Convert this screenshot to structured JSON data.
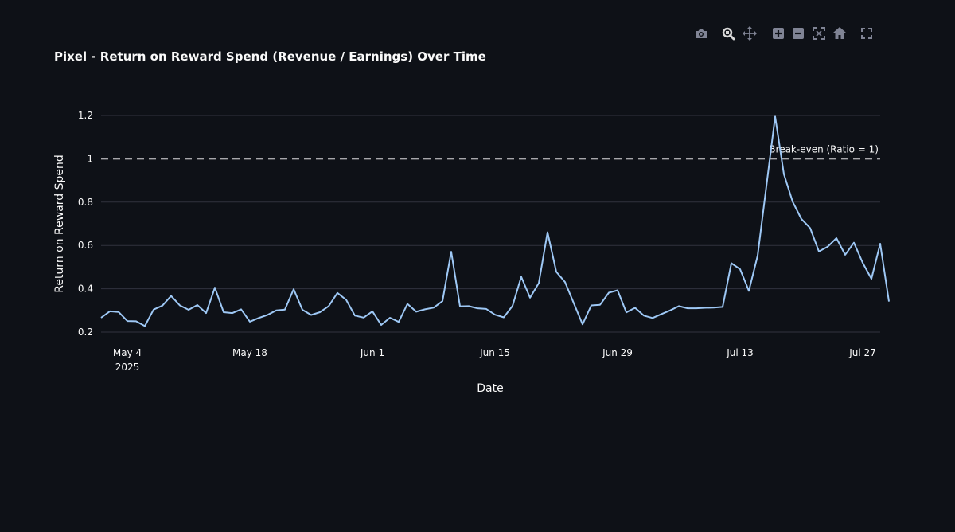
{
  "toolbar": {
    "items": [
      {
        "name": "camera-icon",
        "tooltip": "Download plot as a png"
      },
      {
        "name": "zoom-icon",
        "tooltip": "Zoom"
      },
      {
        "name": "pan-icon",
        "tooltip": "Pan"
      },
      {
        "name": "zoom-in-icon",
        "tooltip": "Zoom in"
      },
      {
        "name": "zoom-out-icon",
        "tooltip": "Zoom out"
      },
      {
        "name": "autoscale-icon",
        "tooltip": "Autoscale"
      },
      {
        "name": "reset-axes-icon",
        "tooltip": "Reset axes"
      },
      {
        "name": "fullscreen-icon",
        "tooltip": "View fullscreen"
      }
    ],
    "active_item": "zoom-icon"
  },
  "colors": {
    "background": "#0e1117",
    "text": "#fafafa",
    "grid": "#31333f",
    "line": "#9ec8f5",
    "threshold": "#a7a7ab",
    "icon": "#808495",
    "icon_active": "#d9d9d9"
  },
  "chart_data": {
    "type": "line",
    "title": "Pixel - Return on Reward Spend (Revenue / Earnings) Over Time",
    "xlabel": "Date",
    "ylabel": "Return on Reward Spend",
    "x_start": "2025-05-01",
    "xlim": [
      "2025-05-01",
      "2025-07-29"
    ],
    "ylim": [
      0.2,
      1.2
    ],
    "yticks": [
      {
        "value": 0.2,
        "label": "0.2"
      },
      {
        "value": 0.4,
        "label": "0.4"
      },
      {
        "value": 0.6,
        "label": "0.6"
      },
      {
        "value": 0.8,
        "label": "0.8"
      },
      {
        "value": 1.0,
        "label": "1"
      },
      {
        "value": 1.2,
        "label": "1.2"
      }
    ],
    "xticks": [
      {
        "date": "2025-05-04",
        "label": "May 4",
        "sublabel": "2025"
      },
      {
        "date": "2025-05-18",
        "label": "May 18",
        "sublabel": ""
      },
      {
        "date": "2025-06-01",
        "label": "Jun 1",
        "sublabel": ""
      },
      {
        "date": "2025-06-15",
        "label": "Jun 15",
        "sublabel": ""
      },
      {
        "date": "2025-06-29",
        "label": "Jun 29",
        "sublabel": ""
      },
      {
        "date": "2025-07-13",
        "label": "Jul 13",
        "sublabel": ""
      },
      {
        "date": "2025-07-27",
        "label": "Jul 27",
        "sublabel": ""
      }
    ],
    "grid": true,
    "legend": "none",
    "threshold": {
      "value": 1.0,
      "label": "Break-even (Ratio = 1)",
      "style": "dashed"
    },
    "series": [
      {
        "values": [
          0.266,
          0.296,
          0.293,
          0.251,
          0.25,
          0.228,
          0.304,
          0.322,
          0.367,
          0.323,
          0.303,
          0.325,
          0.288,
          0.405,
          0.292,
          0.288,
          0.305,
          0.248,
          0.265,
          0.279,
          0.3,
          0.304,
          0.398,
          0.303,
          0.279,
          0.292,
          0.32,
          0.381,
          0.349,
          0.276,
          0.267,
          0.296,
          0.233,
          0.266,
          0.247,
          0.33,
          0.294,
          0.305,
          0.313,
          0.343,
          0.571,
          0.319,
          0.32,
          0.31,
          0.307,
          0.28,
          0.268,
          0.321,
          0.455,
          0.359,
          0.426,
          0.661,
          0.478,
          0.431,
          0.333,
          0.236,
          0.323,
          0.326,
          0.382,
          0.393,
          0.291,
          0.312,
          0.276,
          0.265,
          0.283,
          0.3,
          0.32,
          0.31,
          0.31,
          0.312,
          0.313,
          0.316,
          0.518,
          0.49,
          0.39,
          0.553,
          0.874,
          1.195,
          0.929,
          0.802,
          0.722,
          0.68,
          0.572,
          0.594,
          0.634,
          0.557,
          0.613,
          0.52,
          0.446,
          0.608,
          0.341
        ]
      }
    ]
  }
}
